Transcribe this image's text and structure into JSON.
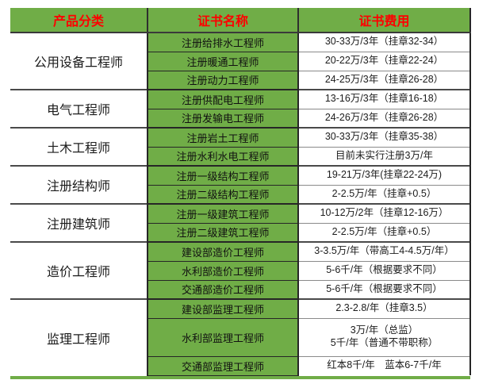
{
  "table": {
    "title": "certificate-fee-table",
    "headers": [
      "产品分类",
      "证书名称",
      "证书费用"
    ],
    "colors": {
      "green": "#70AD47",
      "header_text": "#FE0000",
      "body_text": "#1C1C1C",
      "border": "#262626",
      "bottom_border": "#70AD47"
    },
    "groups": [
      {
        "category": "公用设备工程师",
        "rows": [
          {
            "name": "注册给排水工程师",
            "fee": "30-33万/3年（挂章32-34）"
          },
          {
            "name": "注册暖通工程师",
            "fee": "20-22万/3年（挂章22-24）"
          },
          {
            "name": "注册动力工程师",
            "fee": "24-25万/3年（挂章26-28）"
          }
        ]
      },
      {
        "category": "电气工程师",
        "rows": [
          {
            "name": "注册供配电工程师",
            "fee": "13-16万/3年（挂章16-18）"
          },
          {
            "name": "注册发输电工程师",
            "fee": "24-26万/3年（挂章26-28）"
          }
        ]
      },
      {
        "category": "土木工程师",
        "rows": [
          {
            "name": "注册岩土工程师",
            "fee": "30-33万/3年（挂章35-38）"
          },
          {
            "name": "注册水利水电工程师",
            "fee": "目前未实行注册3万/年"
          }
        ]
      },
      {
        "category": "注册结构师",
        "rows": [
          {
            "name": "注册一级结构工程师",
            "fee": "19-21万/3年(挂章22-24万)"
          },
          {
            "name": "注册二级结构工程师",
            "fee": "2-2.5万/年（挂章+0.5）"
          }
        ]
      },
      {
        "category": "注册建筑师",
        "rows": [
          {
            "name": "注册一级建筑工程师",
            "fee": "10-12万/2年（挂章12-16万）"
          },
          {
            "name": "注册二级建筑工程师",
            "fee": "2-2.5万/年（挂章+0.5）"
          }
        ]
      },
      {
        "category": "造价工程师",
        "rows": [
          {
            "name": "建设部造价工程师",
            "fee": "3-3.5万/年（带高工4-4.5万/年）"
          },
          {
            "name": "水利部造价工程师",
            "fee": "5-6千/年（根据要求不同）"
          },
          {
            "name": "交通部造价工程师",
            "fee": "5-6千/年（根据要求不同）"
          }
        ]
      },
      {
        "category": "监理工程师",
        "rows": [
          {
            "name": "建设部监理工程师",
            "fee": "2.3-2.8/年（挂章3.5）"
          },
          {
            "name": "水利部监理工程师",
            "fee": "3万/年（总监）",
            "fee2": "5千/年（普通不带职称）"
          },
          {
            "name": "交通部监理工程师",
            "fee": "红本8千/年　蓝本6-7千/年"
          }
        ]
      }
    ]
  }
}
